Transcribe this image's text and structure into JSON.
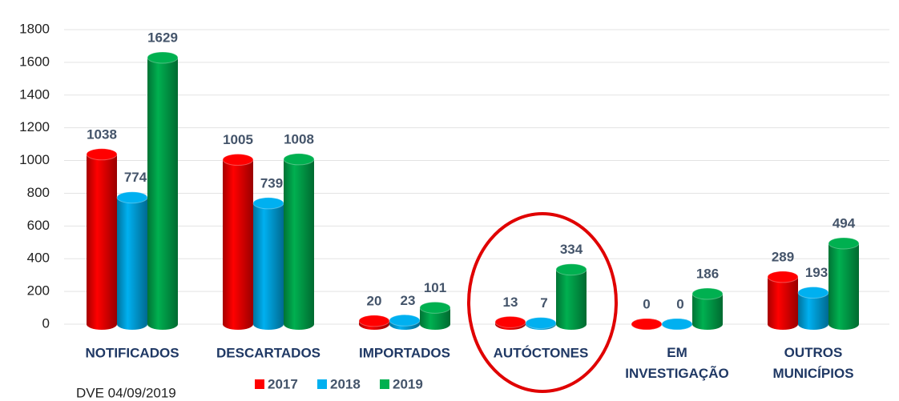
{
  "chart_data": {
    "type": "bar",
    "categories": [
      "NOTIFICADOS",
      "DESCARTADOS",
      "IMPORTADOS",
      "AUTÓCTONES",
      "EM INVESTIGAÇÃO",
      "OUTROS MUNICÍPIOS"
    ],
    "series": [
      {
        "name": "2017",
        "color": "#ff0000",
        "values": [
          1038,
          1005,
          20,
          13,
          0,
          289
        ]
      },
      {
        "name": "2018",
        "color": "#00b0f0",
        "values": [
          774,
          739,
          23,
          7,
          0,
          193
        ]
      },
      {
        "name": "2019",
        "color": "#00b050",
        "values": [
          1629,
          1008,
          101,
          334,
          186,
          494
        ]
      }
    ],
    "ylim": [
      0,
      1800
    ],
    "yticks": [
      0,
      200,
      400,
      600,
      800,
      1000,
      1200,
      1400,
      1600,
      1800
    ],
    "grid": true,
    "legend": "bottom",
    "footnote": "DVE 04/09/2019"
  }
}
